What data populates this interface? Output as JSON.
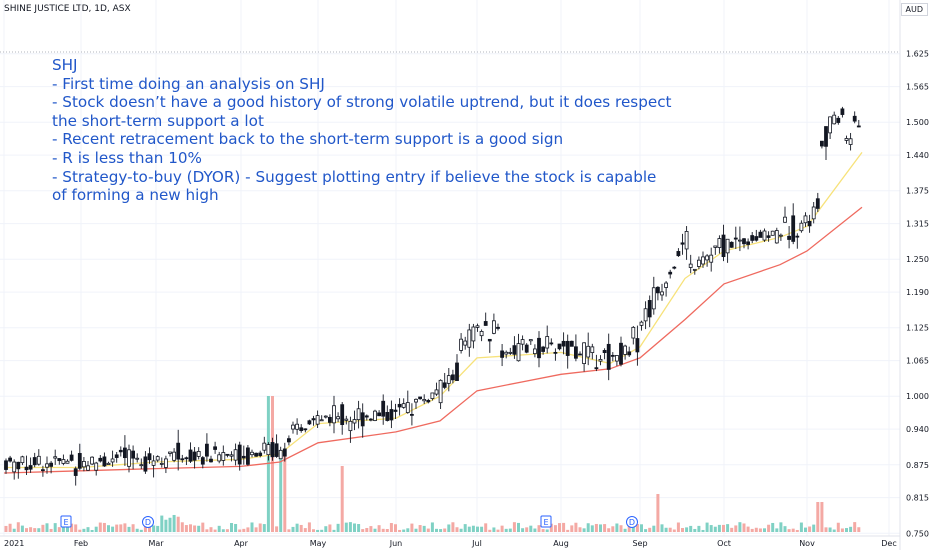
{
  "header": {
    "title": "SHINE JUSTICE LTD, 1D, ASX",
    "currency": "AUD"
  },
  "annotation": {
    "lines": [
      "SHJ",
      "- First time doing an analysis on SHJ",
      "- Stock doesn’t have a good history of strong volatile uptrend, but it does respect the short-term support a lot",
      "- Recent retracement back to the short-term support is a good sign",
      "- R is less than 10%",
      "- Strategy-to-buy (DYOR) - Suggest plotting entry if believe the stock is capable of forming a new high"
    ]
  },
  "colors": {
    "up": "#131722",
    "down": "#131722",
    "ema_fast": "#f7e27a",
    "ema_slow": "#ef6a5f",
    "vol_up": "#7fd1c4",
    "vol_down": "#f4a9a4",
    "annotation": "#2157c9",
    "event_icon": "#2962ff"
  },
  "chart_data": {
    "type": "candlestick",
    "title": "SHINE JUSTICE LTD, 1D, ASX",
    "y_axis": {
      "ticks": [
        "0.750",
        "0.815",
        "0.875",
        "0.940",
        "1.000",
        "1.065",
        "1.125",
        "1.190",
        "1.250",
        "1.315",
        "1.375",
        "1.440",
        "1.500",
        "1.565",
        "1.625"
      ],
      "ylim": [
        0.745,
        1.65
      ],
      "position": "right"
    },
    "x_axis": {
      "ticks": [
        "2021",
        "Feb",
        "Mar",
        "Apr",
        "May",
        "Jun",
        "Jul",
        "Aug",
        "Sep",
        "Oct",
        "Nov",
        "Dec"
      ]
    },
    "events": [
      {
        "label": "E",
        "month": "Feb"
      },
      {
        "label": "D",
        "month": "Mar"
      },
      {
        "label": "E",
        "month": "Aug"
      },
      {
        "label": "D",
        "month": "Sep"
      }
    ],
    "series": [
      {
        "name": "",
        "kind": "ema_short",
        "points": [
          [
            "2021",
            0.87
          ],
          [
            "Feb",
            0.87
          ],
          [
            "Mar",
            0.88
          ],
          [
            "Apr",
            0.885
          ],
          [
            "Apr-mid",
            0.895
          ],
          [
            "May",
            0.95
          ],
          [
            "Jun",
            0.96
          ],
          [
            "Jun-late",
            1.0
          ],
          [
            "Jul",
            1.07
          ],
          [
            "Aug",
            1.08
          ],
          [
            "Aug-late",
            1.06
          ],
          [
            "Sep",
            1.09
          ],
          [
            "Sep-mid",
            1.215
          ],
          [
            "Oct",
            1.265
          ],
          [
            "Oct-late",
            1.29
          ],
          [
            "Nov",
            1.31
          ],
          [
            "Nov-late",
            1.445
          ]
        ]
      },
      {
        "name": "",
        "kind": "ema_long",
        "points": [
          [
            "2021",
            0.86
          ],
          [
            "Feb",
            0.864
          ],
          [
            "Mar",
            0.868
          ],
          [
            "Apr",
            0.872
          ],
          [
            "Apr-mid",
            0.88
          ],
          [
            "May",
            0.915
          ],
          [
            "Jun",
            0.935
          ],
          [
            "Jun-late",
            0.955
          ],
          [
            "Jul",
            1.01
          ],
          [
            "Aug",
            1.04
          ],
          [
            "Aug-late",
            1.05
          ],
          [
            "Sep",
            1.07
          ],
          [
            "Sep-mid",
            1.14
          ],
          [
            "Oct",
            1.205
          ],
          [
            "Oct-late",
            1.24
          ],
          [
            "Nov",
            1.265
          ],
          [
            "Nov-late",
            1.345
          ]
        ]
      }
    ],
    "candles_approx": [
      [
        "Jan",
        0.87,
        0.84,
        0.9,
        0.82
      ],
      [
        "Feb",
        0.86,
        0.87,
        0.89,
        0.845
      ],
      [
        "Mar",
        0.88,
        0.91,
        0.93,
        0.86
      ],
      [
        "Apr",
        0.9,
        0.89,
        0.92,
        0.87
      ],
      [
        "Apr-mid",
        0.9,
        0.99,
        1.0,
        0.885
      ],
      [
        "May",
        0.96,
        0.97,
        0.985,
        0.94
      ],
      [
        "Jun",
        0.98,
        1.0,
        1.03,
        0.935
      ],
      [
        "Jul",
        1.05,
        1.08,
        1.15,
        1.0
      ],
      [
        "Aug",
        1.09,
        1.08,
        1.11,
        1.0
      ],
      [
        "Sep",
        1.1,
        1.28,
        1.32,
        1.08
      ],
      [
        "Oct",
        1.28,
        1.3,
        1.345,
        1.18
      ],
      [
        "Nov",
        1.32,
        1.5,
        1.605,
        1.295
      ]
    ],
    "volume": {
      "note": "Relative daily volume bars",
      "scale": "relative"
    },
    "grid": true,
    "legend": "none"
  }
}
